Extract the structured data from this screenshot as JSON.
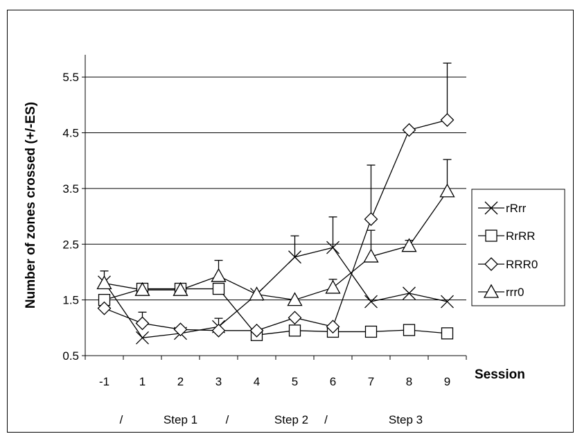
{
  "chart_data": {
    "type": "line",
    "title": "",
    "xlabel": "Session",
    "ylabel": "Number of zones crossed (+/-ES)",
    "categories": [
      "-1",
      "1",
      "2",
      "3",
      "4",
      "5",
      "6",
      "7",
      "8",
      "9"
    ],
    "ylim": [
      0.5,
      5.9
    ],
    "yticks": [
      "0.5",
      "1.5",
      "2.5",
      "3.5",
      "4.5",
      "5.5"
    ],
    "ytick_values": [
      0.5,
      1.5,
      2.5,
      3.5,
      4.5,
      5.5
    ],
    "grid": "horizontal",
    "legend_position": "right",
    "step_labels": [
      "/",
      "Step 1",
      "/",
      "Step 2",
      "/",
      "Step 3"
    ],
    "series": [
      {
        "name": "rRrr",
        "marker": "x",
        "values": [
          1.82,
          0.82,
          0.9,
          1.02,
          1.6,
          2.27,
          2.44,
          1.47,
          1.62,
          1.47
        ],
        "errors": [
          0.2,
          0,
          0,
          0.15,
          0,
          0.38,
          0.55,
          0,
          0,
          0
        ]
      },
      {
        "name": "RrRR",
        "marker": "square",
        "values": [
          1.5,
          1.7,
          1.7,
          1.7,
          0.87,
          0.95,
          0.93,
          0.93,
          0.96,
          0.9
        ],
        "errors": [
          0,
          0,
          0,
          0,
          0,
          0,
          0,
          0,
          0,
          0
        ]
      },
      {
        "name": "RRR0",
        "marker": "diamond",
        "values": [
          1.35,
          1.08,
          0.97,
          0.95,
          0.95,
          1.18,
          1.02,
          2.95,
          4.55,
          4.73
        ],
        "errors": [
          0,
          0.2,
          0,
          0,
          0,
          0,
          0,
          0.97,
          0,
          1.02
        ]
      },
      {
        "name": "rrr0",
        "marker": "triangle",
        "values": [
          1.8,
          1.68,
          1.68,
          1.93,
          1.6,
          1.5,
          1.72,
          2.28,
          2.47,
          3.45
        ],
        "errors": [
          0,
          0,
          0,
          0.28,
          0,
          0,
          0.15,
          0.47,
          0.1,
          0.57
        ]
      }
    ]
  }
}
